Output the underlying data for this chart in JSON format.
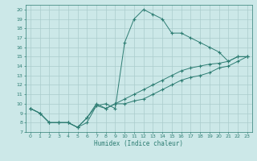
{
  "xlabel": "Humidex (Indice chaleur)",
  "bg_color": "#cce8e8",
  "grid_color": "#aacccc",
  "line_color": "#2e7d73",
  "xlim": [
    -0.5,
    23.5
  ],
  "ylim": [
    7,
    20.5
  ],
  "xticks": [
    0,
    1,
    2,
    3,
    4,
    5,
    6,
    7,
    8,
    9,
    10,
    11,
    12,
    13,
    14,
    15,
    16,
    17,
    18,
    19,
    20,
    21,
    22,
    23
  ],
  "yticks": [
    7,
    8,
    9,
    10,
    11,
    12,
    13,
    14,
    15,
    16,
    17,
    18,
    19,
    20
  ],
  "line1_x": [
    0,
    1,
    2,
    3,
    4,
    5,
    6,
    7,
    8,
    9,
    10,
    11,
    12,
    13,
    14,
    15,
    16,
    17,
    18,
    19,
    20,
    21,
    22,
    23
  ],
  "line1_y": [
    9.5,
    9.0,
    8.0,
    8.0,
    8.0,
    7.5,
    8.0,
    9.8,
    10.0,
    9.5,
    16.5,
    19.0,
    20.0,
    19.5,
    19.0,
    17.5,
    17.5,
    17.0,
    16.5,
    16.0,
    15.5,
    14.5,
    15.0,
    15.0
  ],
  "line2_x": [
    0,
    1,
    2,
    3,
    4,
    5,
    6,
    7,
    8,
    9,
    10,
    11,
    12,
    13,
    14,
    15,
    16,
    17,
    18,
    19,
    20,
    21,
    22,
    23
  ],
  "line2_y": [
    9.5,
    9.0,
    8.0,
    8.0,
    8.0,
    7.5,
    8.5,
    10.0,
    9.5,
    10.0,
    10.5,
    11.0,
    11.5,
    12.0,
    12.5,
    13.0,
    13.5,
    13.8,
    14.0,
    14.2,
    14.3,
    14.5,
    15.0,
    15.0
  ],
  "line3_x": [
    0,
    1,
    2,
    3,
    4,
    5,
    6,
    7,
    8,
    9,
    10,
    11,
    12,
    13,
    14,
    15,
    16,
    17,
    18,
    19,
    20,
    21,
    22,
    23
  ],
  "line3_y": [
    9.5,
    9.0,
    8.0,
    8.0,
    8.0,
    7.5,
    8.5,
    9.8,
    9.5,
    10.0,
    10.0,
    10.3,
    10.5,
    11.0,
    11.5,
    12.0,
    12.5,
    12.8,
    13.0,
    13.3,
    13.8,
    14.0,
    14.5,
    15.0
  ]
}
